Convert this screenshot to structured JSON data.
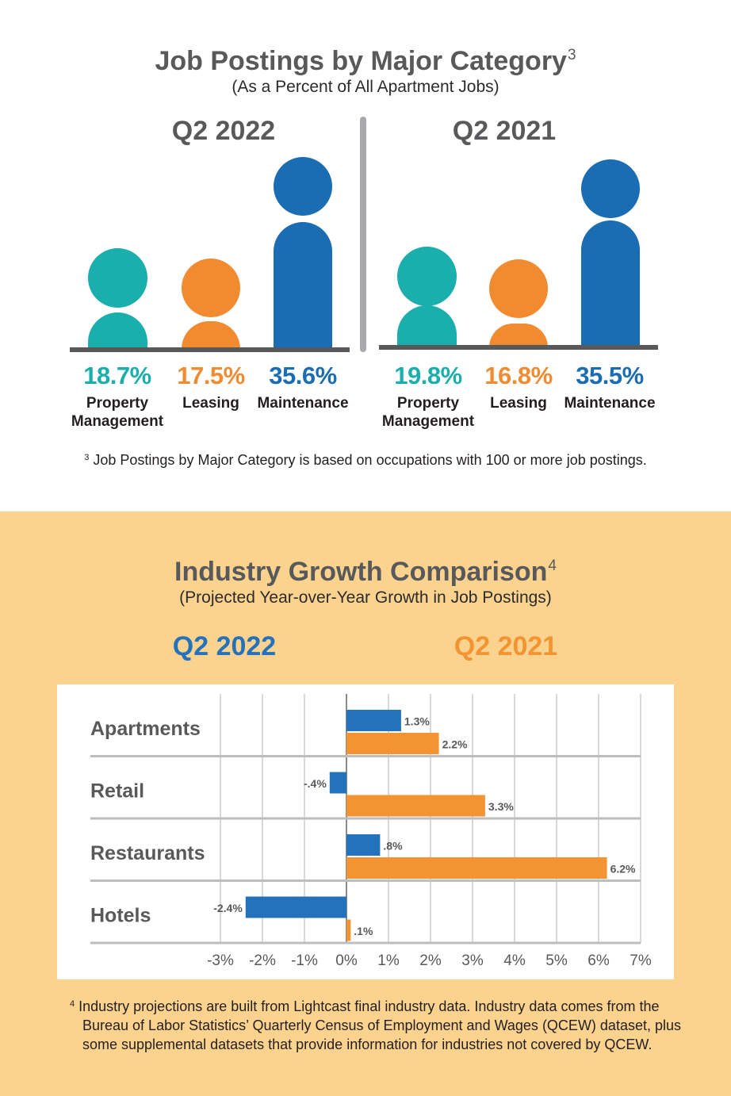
{
  "section1": {
    "title": "Job Postings by Major Category",
    "title_footnote_mark": "3",
    "subtitle": "(As a Percent of All Apartment Jobs)",
    "panels": [
      {
        "label": "Q2 2022",
        "items": [
          {
            "pct": "18.7%",
            "label_line1": "Property",
            "label_line2": "Management",
            "value": 18.7,
            "color": "#1aafac"
          },
          {
            "pct": "17.5%",
            "label_line1": "Leasing",
            "label_line2": "",
            "value": 17.5,
            "color": "#f28a2f"
          },
          {
            "pct": "35.6%",
            "label_line1": "Maintenance",
            "label_line2": "",
            "value": 35.6,
            "color": "#1a6cb3"
          }
        ]
      },
      {
        "label": "Q2 2021",
        "items": [
          {
            "pct": "19.8%",
            "label_line1": "Property",
            "label_line2": "Management",
            "value": 19.8,
            "color": "#1aafac"
          },
          {
            "pct": "16.8%",
            "label_line1": "Leasing",
            "label_line2": "",
            "value": 16.8,
            "color": "#f28a2f"
          },
          {
            "pct": "35.5%",
            "label_line1": "Maintenance",
            "label_line2": "",
            "value": 35.5,
            "color": "#1a6cb3"
          }
        ]
      }
    ],
    "footnote_mark": "3",
    "footnote": "Job Postings by Major Category is based on occupations with 100 or more job postings."
  },
  "section2": {
    "title": "Industry Growth Comparison",
    "title_footnote_mark": "4",
    "subtitle": "(Projected Year-over-Year Growth in Job Postings)",
    "legend": [
      {
        "label": "Q2 2022",
        "color": "#2372bb"
      },
      {
        "label": "Q2 2021",
        "color": "#f39433"
      }
    ],
    "footnote_mark": "4",
    "footnote_line1": "Industry projections are built from Lightcast final industry data. Industry data comes from the",
    "footnote_line2": "Bureau of Labor Statistics’ Quarterly Census of Employment and Wages (QCEW) dataset, plus",
    "footnote_line3": "some supplemental datasets that provide information for industries not covered by QCEW."
  },
  "chart_data": {
    "type": "bar",
    "orientation": "horizontal",
    "categories": [
      "Apartments",
      "Retail",
      "Restaurants",
      "Hotels"
    ],
    "series": [
      {
        "name": "Q2 2022",
        "color": "#2372bb",
        "values": [
          1.3,
          -0.4,
          0.8,
          -2.4
        ],
        "labels": [
          "1.3%",
          "-.4%",
          ".8%",
          "-2.4%"
        ]
      },
      {
        "name": "Q2 2021",
        "color": "#f39433",
        "values": [
          2.2,
          3.3,
          6.2,
          0.1
        ],
        "labels": [
          "2.2%",
          "3.3%",
          "6.2%",
          ".1%"
        ]
      }
    ],
    "xlim": [
      -3,
      7
    ],
    "xticks": [
      -3,
      -2,
      -1,
      0,
      1,
      2,
      3,
      4,
      5,
      6,
      7
    ],
    "xtick_labels": [
      "-3%",
      "-2%",
      "-1%",
      "0%",
      "1%",
      "2%",
      "3%",
      "4%",
      "5%",
      "6%",
      "7%"
    ],
    "grid": true
  }
}
